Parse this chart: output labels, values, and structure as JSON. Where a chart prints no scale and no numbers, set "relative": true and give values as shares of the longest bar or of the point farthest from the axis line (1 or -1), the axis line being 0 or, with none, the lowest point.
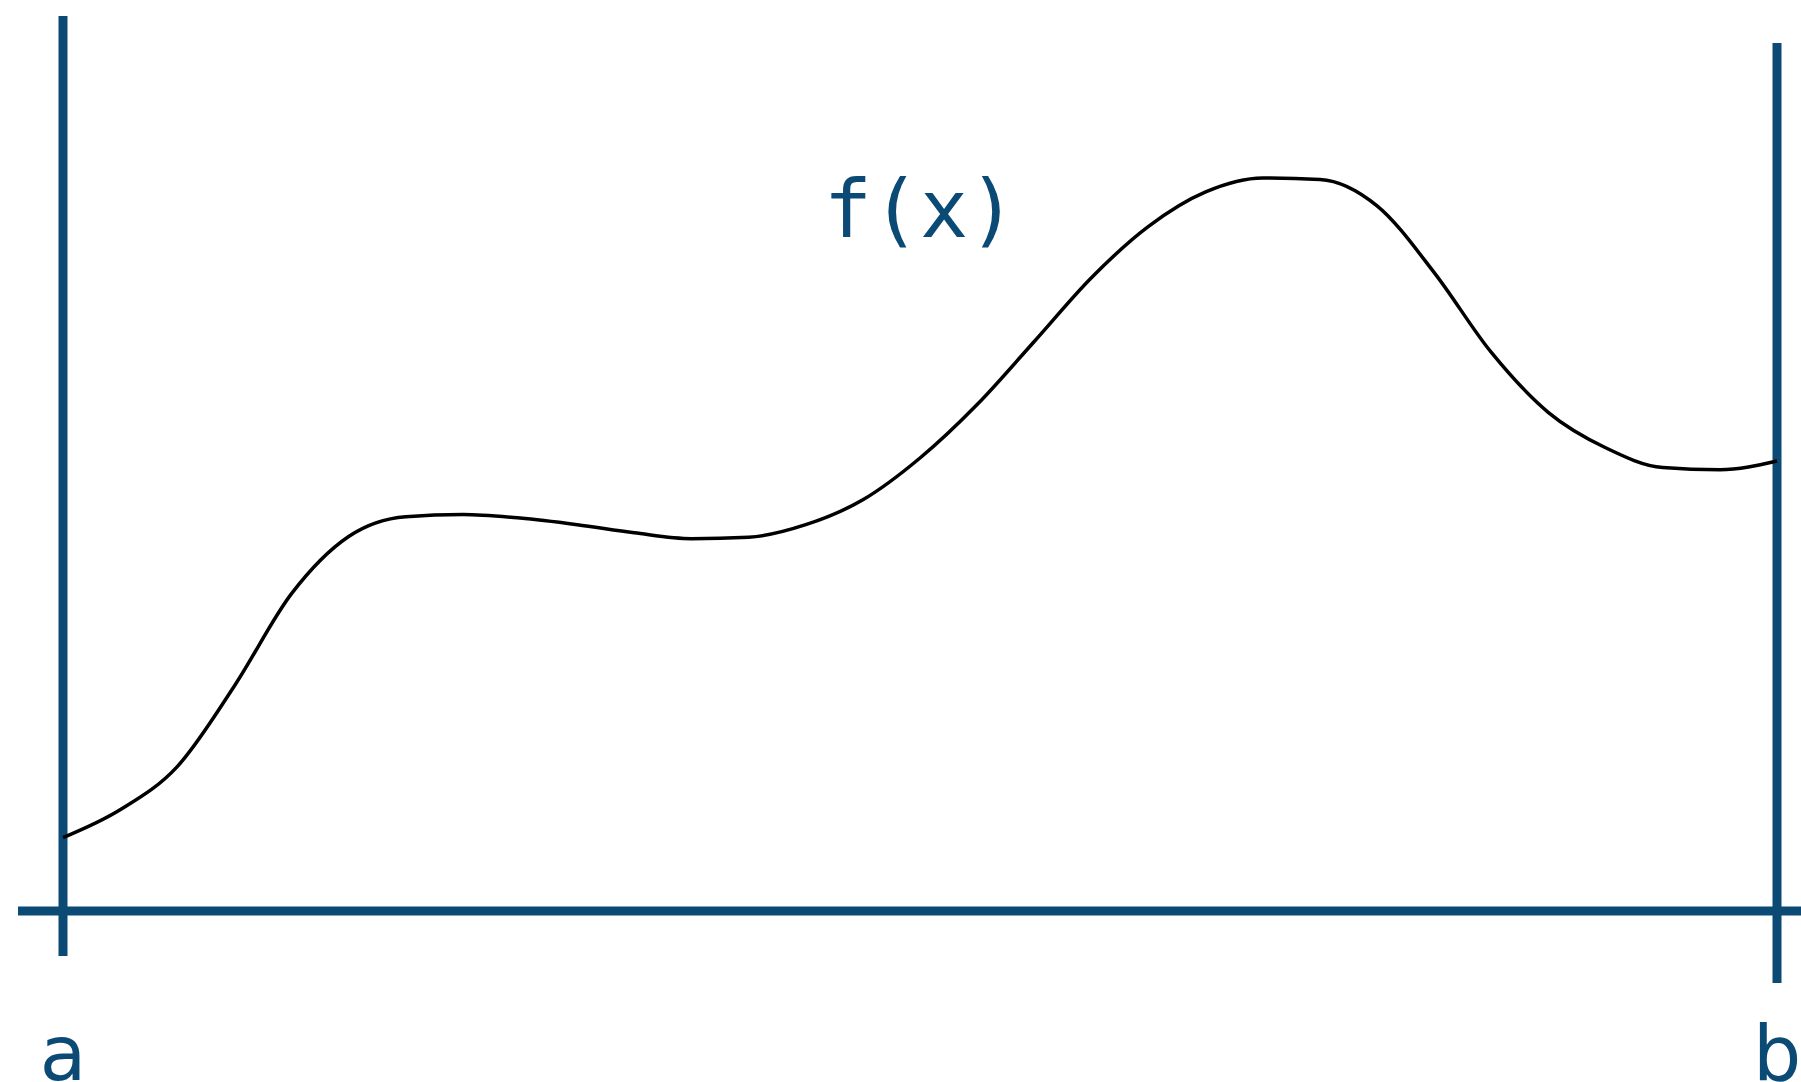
{
  "chart_data": {
    "type": "line",
    "relative": true,
    "categories": [
      "a",
      null,
      null,
      null,
      null,
      null,
      null,
      null,
      null,
      null,
      null,
      null,
      null,
      null,
      null,
      null,
      null,
      null,
      null,
      null,
      null,
      null,
      null,
      null,
      null,
      null,
      null,
      null,
      null,
      null,
      "b"
    ],
    "series": [
      {
        "name": "f(x)",
        "color": "#000000",
        "values": [
          0.1,
          0.138,
          0.197,
          0.307,
          0.433,
          0.511,
          0.538,
          0.541,
          0.536,
          0.527,
          0.516,
          0.508,
          0.51,
          0.527,
          0.561,
          0.618,
          0.691,
          0.777,
          0.864,
          0.934,
          0.981,
          1.0,
          0.998,
          0.962,
          0.871,
          0.762,
          0.68,
          0.632,
          0.605,
          0.602,
          0.614
        ]
      }
    ],
    "grid": "x",
    "marker": "none",
    "line_style": "solid"
  }
}
